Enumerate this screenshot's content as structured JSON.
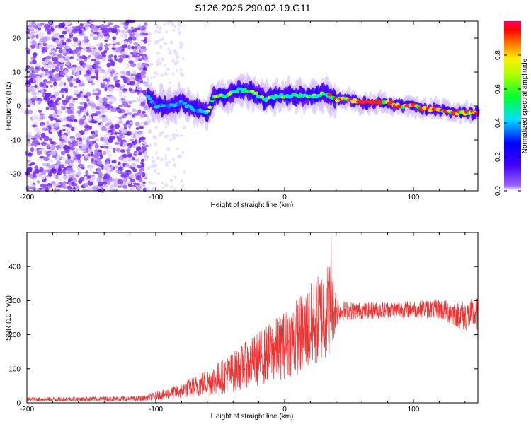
{
  "title": "S126.2025.290.02.19.G11",
  "chart_data": [
    {
      "id": "spectrogram",
      "type": "heatmap",
      "xlabel": "Height of straight line (km)",
      "ylabel": "Frequency (Hz)",
      "xlim": [
        -200,
        150
      ],
      "ylim": [
        -25,
        25
      ],
      "xticks": [
        -200,
        -100,
        0,
        100
      ],
      "yticks": [
        -20,
        -10,
        0,
        10,
        20
      ],
      "colorbar": {
        "label": "Normalized spectral amplitude",
        "range": [
          0,
          1
        ],
        "ticks": [
          0.0,
          0.2,
          0.4,
          0.6,
          0.8
        ],
        "tick_labels": [
          "0.0",
          "0.2",
          "0.4",
          "0.6",
          "0.8"
        ],
        "colormap": [
          "#ffffff",
          "#7b00ff",
          "#0000ff",
          "#00ffff",
          "#00ff00",
          "#ffff00",
          "#ff8000",
          "#ff0000",
          "#ff0080"
        ]
      },
      "features": {
        "noise_region_x": [
          -200,
          -107
        ],
        "signal_trace": [
          {
            "x": -106,
            "y": 3
          },
          {
            "x": -100,
            "y": 0
          },
          {
            "x": -90,
            "y": 0
          },
          {
            "x": -80,
            "y": 1
          },
          {
            "x": -70,
            "y": -1
          },
          {
            "x": -60,
            "y": -2
          },
          {
            "x": -55,
            "y": 3
          },
          {
            "x": -45,
            "y": 3
          },
          {
            "x": -35,
            "y": 5
          },
          {
            "x": -25,
            "y": 4
          },
          {
            "x": -15,
            "y": 2
          },
          {
            "x": -5,
            "y": 3
          },
          {
            "x": 5,
            "y": 3
          },
          {
            "x": 15,
            "y": 3
          },
          {
            "x": 25,
            "y": 3
          },
          {
            "x": 30,
            "y": 4
          },
          {
            "x": 40,
            "y": 2
          },
          {
            "x": 50,
            "y": 2
          },
          {
            "x": 60,
            "y": 1
          },
          {
            "x": 70,
            "y": 1
          },
          {
            "x": 80,
            "y": 1
          },
          {
            "x": 90,
            "y": 0
          },
          {
            "x": 100,
            "y": 0
          },
          {
            "x": 110,
            "y": -1
          },
          {
            "x": 120,
            "y": -1
          },
          {
            "x": 130,
            "y": -2
          },
          {
            "x": 140,
            "y": -2
          },
          {
            "x": 150,
            "y": -2
          }
        ]
      }
    },
    {
      "id": "snr",
      "type": "line",
      "xlabel": "Height of straight line (km)",
      "ylabel": "SNR (10 * v/v)",
      "xlim": [
        -200,
        150
      ],
      "ylim": [
        0,
        500
      ],
      "xticks": [
        -200,
        -100,
        0,
        100
      ],
      "yticks": [
        0,
        100,
        200,
        300,
        400
      ],
      "color": "#ee3333",
      "series": [
        {
          "name": "SNR",
          "envelope": [
            {
              "x": -200,
              "mean": 10,
              "spread": 6
            },
            {
              "x": -110,
              "mean": 12,
              "spread": 8
            },
            {
              "x": -100,
              "mean": 20,
              "spread": 12
            },
            {
              "x": -80,
              "mean": 35,
              "spread": 22
            },
            {
              "x": -60,
              "mean": 60,
              "spread": 40
            },
            {
              "x": -40,
              "mean": 90,
              "spread": 60
            },
            {
              "x": -20,
              "mean": 130,
              "spread": 80
            },
            {
              "x": 0,
              "mean": 170,
              "spread": 100
            },
            {
              "x": 20,
              "mean": 220,
              "spread": 130
            },
            {
              "x": 35,
              "mean": 280,
              "spread": 140
            },
            {
              "x": 42,
              "mean": 270,
              "spread": 30
            },
            {
              "x": 60,
              "mean": 270,
              "spread": 25
            },
            {
              "x": 100,
              "mean": 275,
              "spread": 25
            },
            {
              "x": 120,
              "mean": 275,
              "spread": 30
            },
            {
              "x": 140,
              "mean": 255,
              "spread": 45
            },
            {
              "x": 150,
              "mean": 260,
              "spread": 50
            }
          ],
          "peak": {
            "x": 36,
            "y": 490
          }
        }
      ]
    }
  ]
}
